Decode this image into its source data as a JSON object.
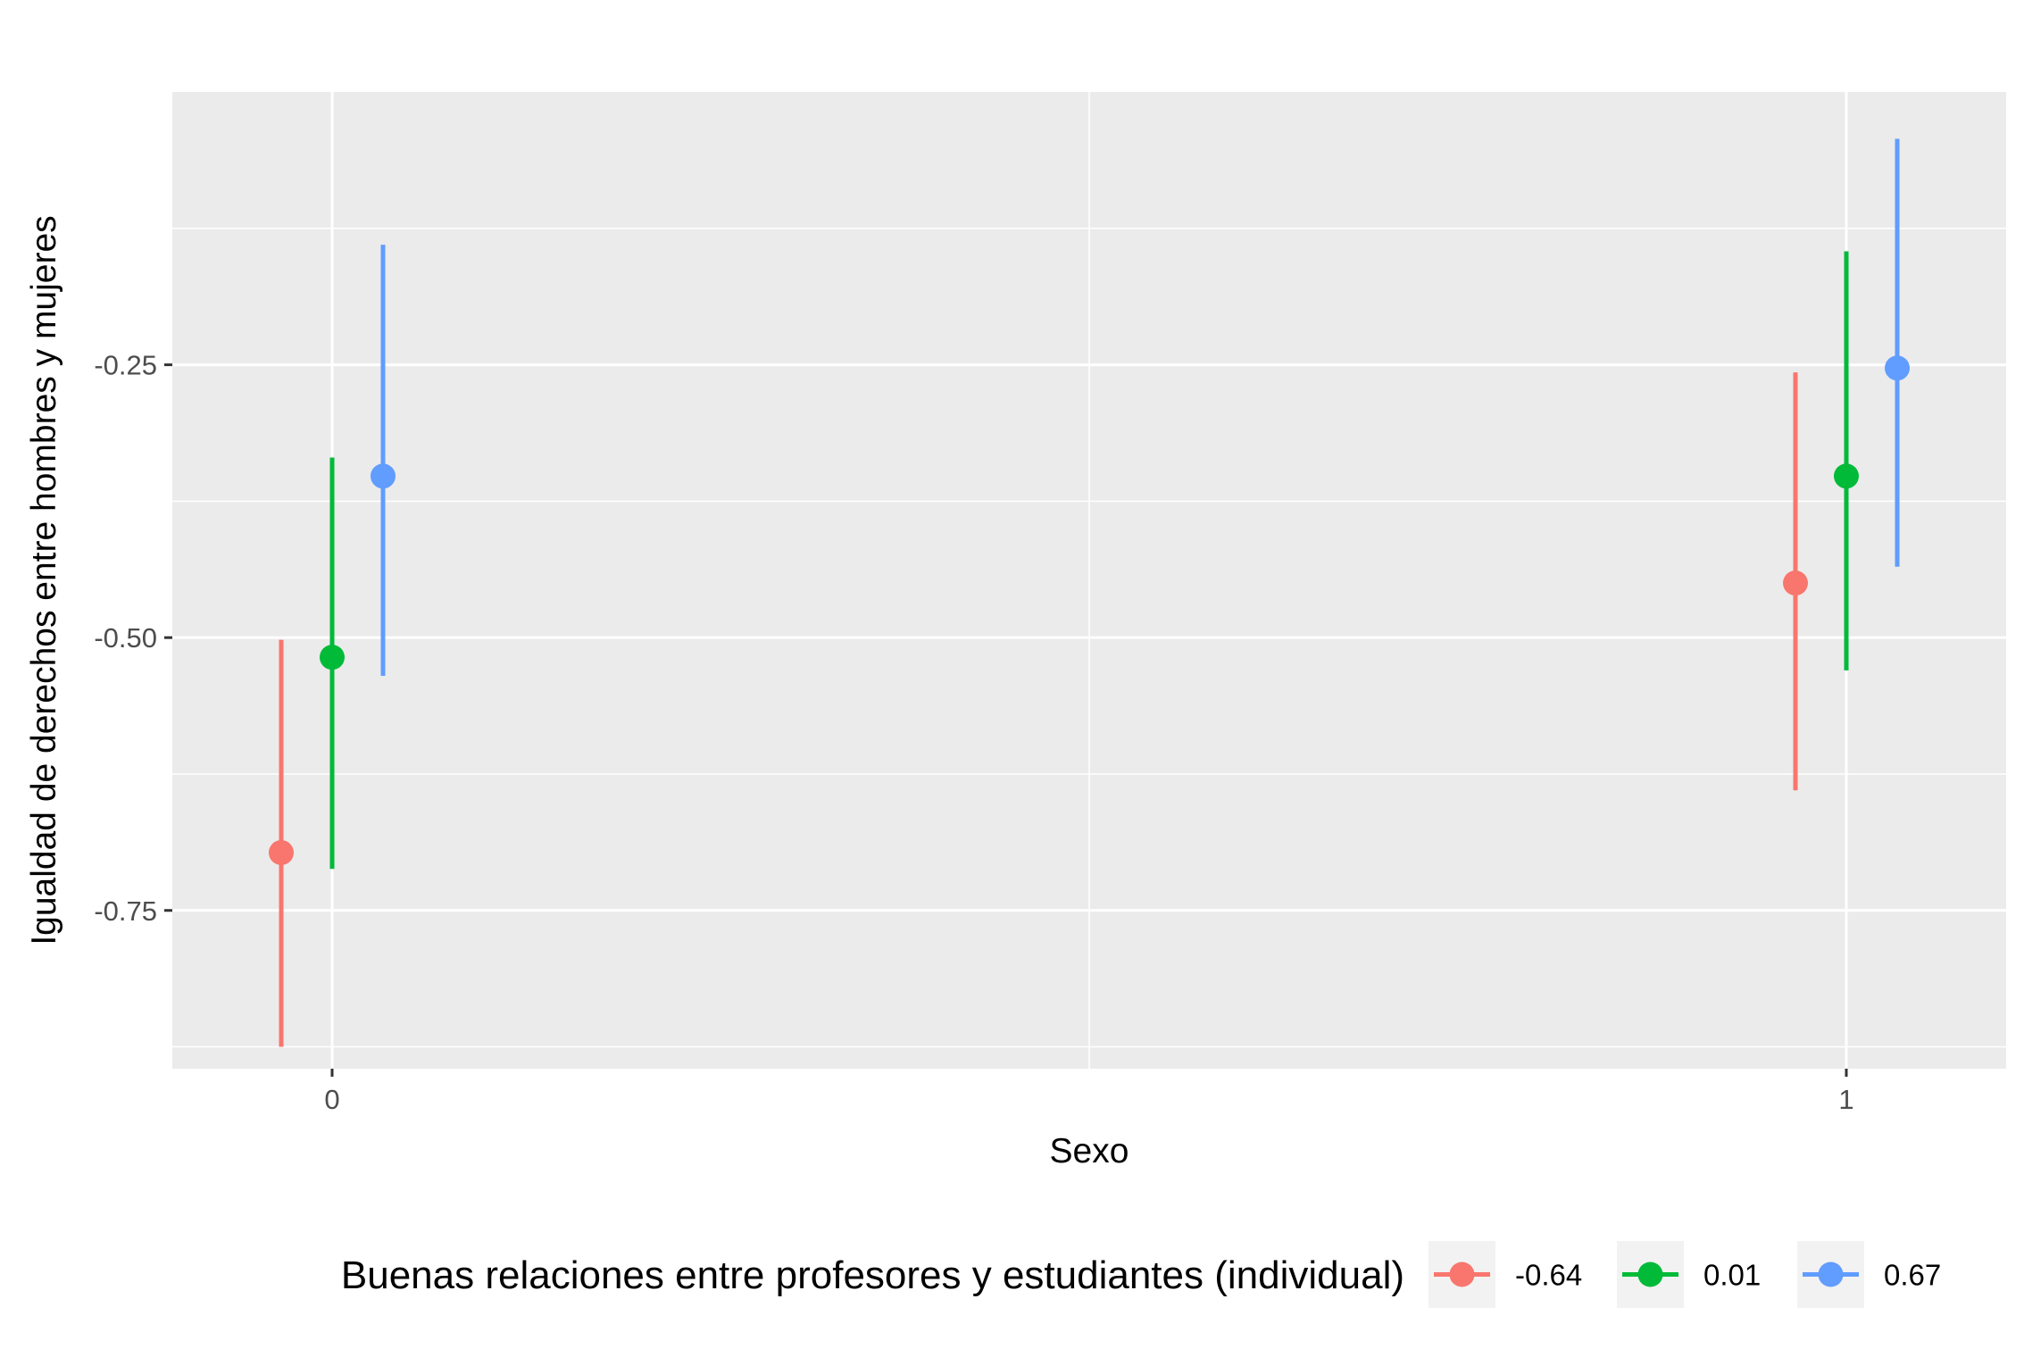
{
  "chart_data": {
    "type": "scatter",
    "subtype": "point-range",
    "title": "",
    "xlabel": "Sexo",
    "ylabel": "Igualdad de derechos entre hombres y mujeres",
    "categories": [
      "0",
      "1"
    ],
    "y_ticks": [
      "-0.25",
      "-0.50",
      "-0.75"
    ],
    "y_tick_values": [
      -0.25,
      -0.5,
      -0.75
    ],
    "ylim": [
      -0.895,
      0.0
    ],
    "grid": true,
    "panel_background": "#ebebeb",
    "grid_color": "#ffffff",
    "legend": {
      "title": "Buenas relaciones entre profesores y estudiantes (individual)",
      "position": "bottom",
      "key_background": "#f2f2f2"
    },
    "series": [
      {
        "name": "-0.64",
        "color": "#F8766D",
        "values": [
          -0.697,
          -0.45
        ],
        "lower": [
          -0.875,
          -0.64
        ],
        "upper": [
          -0.502,
          -0.257
        ]
      },
      {
        "name": "0.01",
        "color": "#00BA38",
        "values": [
          -0.518,
          -0.352
        ],
        "lower": [
          -0.712,
          -0.53
        ],
        "upper": [
          -0.335,
          -0.146
        ]
      },
      {
        "name": "0.67",
        "color": "#619CFF",
        "values": [
          -0.352,
          -0.253
        ],
        "lower": [
          -0.535,
          -0.435
        ],
        "upper": [
          -0.14,
          -0.043
        ]
      }
    ]
  }
}
